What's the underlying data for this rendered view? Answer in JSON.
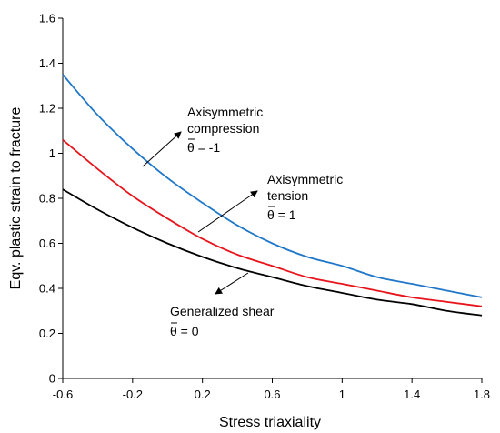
{
  "chart_data": {
    "type": "line",
    "xlabel": "Stress triaxiality",
    "ylabel": "Eqv. plastic strain to fracture",
    "xlim": [
      -0.6,
      1.8
    ],
    "ylim": [
      0,
      1.6
    ],
    "x_ticks": [
      "-0.6",
      "-0.2",
      "0.2",
      "0.6",
      "1",
      "1.4",
      "1.8"
    ],
    "y_ticks": [
      "0",
      "0.2",
      "0.4",
      "0.6",
      "0.8",
      "1",
      "1.2",
      "1.4",
      "1.6"
    ],
    "grid": false,
    "legend": "none",
    "series": [
      {
        "color": "#1f77c9",
        "x": [
          -0.6,
          -0.4,
          -0.2,
          0.0,
          0.2,
          0.4,
          0.6,
          0.8,
          1.0,
          1.2,
          1.4,
          1.6,
          1.8
        ],
        "values": [
          1.35,
          1.17,
          1.02,
          0.89,
          0.78,
          0.68,
          0.6,
          0.54,
          0.5,
          0.45,
          0.42,
          0.39,
          0.36
        ]
      },
      {
        "color": "#e8141b",
        "x": [
          -0.6,
          -0.4,
          -0.2,
          0.0,
          0.2,
          0.4,
          0.6,
          0.8,
          1.0,
          1.2,
          1.4,
          1.6,
          1.8
        ],
        "values": [
          1.06,
          0.93,
          0.81,
          0.71,
          0.62,
          0.55,
          0.5,
          0.45,
          0.42,
          0.39,
          0.36,
          0.34,
          0.32
        ]
      },
      {
        "color": "#000000",
        "x": [
          -0.6,
          -0.4,
          -0.2,
          0.0,
          0.2,
          0.4,
          0.6,
          0.8,
          1.0,
          1.2,
          1.4,
          1.6,
          1.8
        ],
        "values": [
          0.84,
          0.75,
          0.67,
          0.6,
          0.54,
          0.49,
          0.45,
          0.41,
          0.38,
          0.35,
          0.33,
          0.3,
          0.28
        ]
      }
    ],
    "annotations": [
      {
        "lines": [
          "Axisymmetric",
          "compression"
        ],
        "theta_label": "θ = -1"
      },
      {
        "lines": [
          "Axisymmetric",
          "tension"
        ],
        "theta_label": "θ = 1"
      },
      {
        "lines": [
          "Generalized shear"
        ],
        "theta_label": "θ = 0"
      }
    ]
  }
}
